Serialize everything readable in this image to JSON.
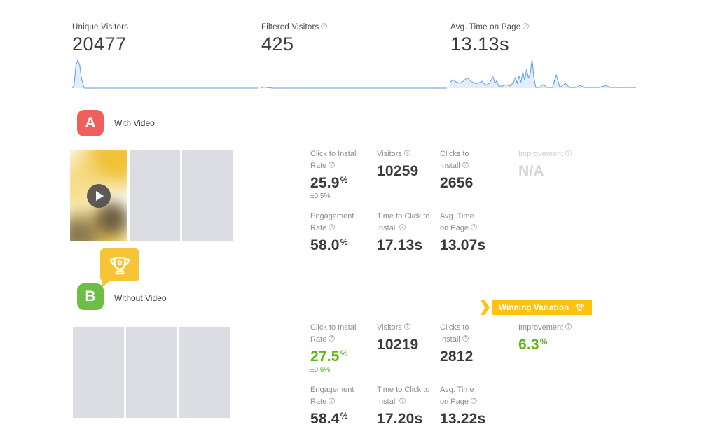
{
  "colors": {
    "red": "#f15f5c",
    "badge_green": "#6cbe45",
    "green": "#5cb615",
    "yellow": "#f6c436",
    "ribbon_yellow": "#ffc20e",
    "placeholder": "#dcdde2",
    "spark_stroke": "#5b9bf0",
    "spark_fill": "rgba(91,155,240,0.18)"
  },
  "summary": [
    {
      "label": "Unique Visitors",
      "value": "20477",
      "help": false
    },
    {
      "label": "Filtered Visitors",
      "value": "425",
      "help": true
    },
    {
      "label": "Avg. Time on Page",
      "value": "13.13s",
      "help": true
    }
  ],
  "sparklines": [
    {
      "points": [
        [
          0,
          46
        ],
        [
          1,
          42
        ],
        [
          2,
          14
        ],
        [
          3,
          6
        ],
        [
          4,
          12
        ],
        [
          5,
          32
        ],
        [
          6.5,
          46
        ],
        [
          100,
          46
        ]
      ]
    },
    {
      "points": [
        [
          0,
          46
        ],
        [
          1,
          44
        ],
        [
          3,
          45
        ],
        [
          6,
          46
        ],
        [
          100,
          46
        ]
      ]
    },
    {
      "points": [
        [
          0,
          37
        ],
        [
          1.5,
          34
        ],
        [
          3,
          37
        ],
        [
          5,
          39
        ],
        [
          7,
          36
        ],
        [
          9,
          31
        ],
        [
          11,
          36
        ],
        [
          13,
          39
        ],
        [
          15,
          39
        ],
        [
          17,
          36
        ],
        [
          19,
          42
        ],
        [
          21,
          39
        ],
        [
          23,
          30
        ],
        [
          24,
          39
        ],
        [
          25,
          35
        ],
        [
          26,
          43
        ],
        [
          28,
          43
        ],
        [
          30,
          41
        ],
        [
          32,
          43
        ],
        [
          34,
          38
        ],
        [
          35,
          31
        ],
        [
          36,
          39
        ],
        [
          37,
          29
        ],
        [
          38,
          37
        ],
        [
          39,
          23
        ],
        [
          40,
          35
        ],
        [
          41,
          19
        ],
        [
          42,
          31
        ],
        [
          43,
          25
        ],
        [
          44,
          5
        ],
        [
          45,
          31
        ],
        [
          46,
          45
        ],
        [
          48,
          45
        ],
        [
          50,
          41
        ],
        [
          52,
          45
        ],
        [
          55,
          45
        ],
        [
          57,
          27
        ],
        [
          59,
          45
        ],
        [
          62,
          39
        ],
        [
          64,
          45
        ],
        [
          68,
          45
        ],
        [
          70,
          42
        ],
        [
          72,
          45
        ],
        [
          80,
          45
        ],
        [
          84,
          42
        ],
        [
          86,
          45
        ],
        [
          100,
          45
        ]
      ]
    }
  ],
  "winning_banner": {
    "label": "Winning Variation"
  },
  "variations": [
    {
      "letter": "A",
      "name": "With Video",
      "rows": [
        [
          {
            "label": "Click to Install Rate",
            "value": "25.9",
            "unit": "%",
            "sub": "±0.5%"
          },
          {
            "label": "Visitors",
            "value": "10259"
          },
          {
            "label": "Clicks to Install",
            "value": "2656"
          },
          {
            "label": "Improvement",
            "value": "N/A"
          }
        ],
        [
          {
            "label": "Engagement Rate",
            "value": "58.0",
            "unit": "%"
          },
          {
            "label": "Time to Click to Install",
            "value": "17.13s"
          },
          {
            "label": "Avg. Time on Page",
            "value": "13.07s"
          }
        ]
      ]
    },
    {
      "letter": "B",
      "name": "Without Video",
      "rows": [
        [
          {
            "label": "Click to Install Rate",
            "value": "27.5",
            "unit": "%",
            "sub": "±0.6%"
          },
          {
            "label": "Visitors",
            "value": "10219"
          },
          {
            "label": "Clicks to Install",
            "value": "2812"
          },
          {
            "label": "Improvement",
            "value": "6.3",
            "unit": "%"
          }
        ],
        [
          {
            "label": "Engagement Rate",
            "value": "58.4",
            "unit": "%"
          },
          {
            "label": "Time to Click to Install",
            "value": "17.20s"
          },
          {
            "label": "Avg. Time on Page",
            "value": "13.22s"
          }
        ]
      ]
    }
  ]
}
